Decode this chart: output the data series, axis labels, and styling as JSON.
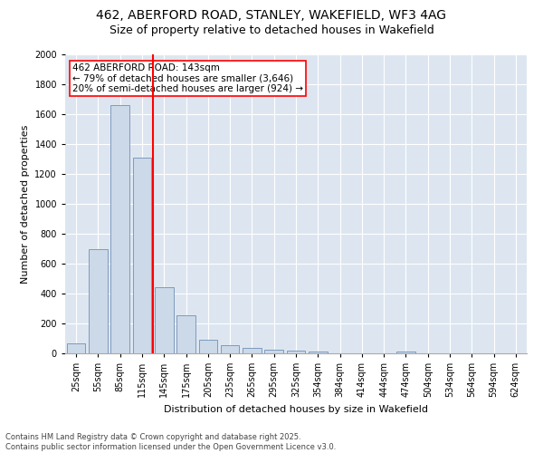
{
  "title_line1": "462, ABERFORD ROAD, STANLEY, WAKEFIELD, WF3 4AG",
  "title_line2": "Size of property relative to detached houses in Wakefield",
  "xlabel": "Distribution of detached houses by size in Wakefield",
  "ylabel": "Number of detached properties",
  "categories": [
    "25sqm",
    "55sqm",
    "85sqm",
    "115sqm",
    "145sqm",
    "175sqm",
    "205sqm",
    "235sqm",
    "265sqm",
    "295sqm",
    "325sqm",
    "354sqm",
    "384sqm",
    "414sqm",
    "444sqm",
    "474sqm",
    "504sqm",
    "534sqm",
    "564sqm",
    "594sqm",
    "624sqm"
  ],
  "values": [
    65,
    700,
    1660,
    1310,
    440,
    255,
    90,
    55,
    35,
    25,
    20,
    10,
    0,
    0,
    0,
    12,
    0,
    0,
    0,
    0,
    0
  ],
  "bar_color": "#ccd9e8",
  "bar_edge_color": "#7090b8",
  "vline_color": "red",
  "vline_x": 3.5,
  "annotation_text": "462 ABERFORD ROAD: 143sqm\n← 79% of detached houses are smaller (3,646)\n20% of semi-detached houses are larger (924) →",
  "annotation_box_color": "white",
  "annotation_box_edge_color": "red",
  "ylim": [
    0,
    2000
  ],
  "yticks": [
    0,
    200,
    400,
    600,
    800,
    1000,
    1200,
    1400,
    1600,
    1800,
    2000
  ],
  "bg_color": "#dde6f0",
  "footer_line1": "Contains HM Land Registry data © Crown copyright and database right 2025.",
  "footer_line2": "Contains public sector information licensed under the Open Government Licence v3.0.",
  "title_fontsize": 10,
  "subtitle_fontsize": 9,
  "axis_label_fontsize": 8,
  "tick_fontsize": 7,
  "annotation_fontsize": 7.5,
  "footer_fontsize": 6
}
